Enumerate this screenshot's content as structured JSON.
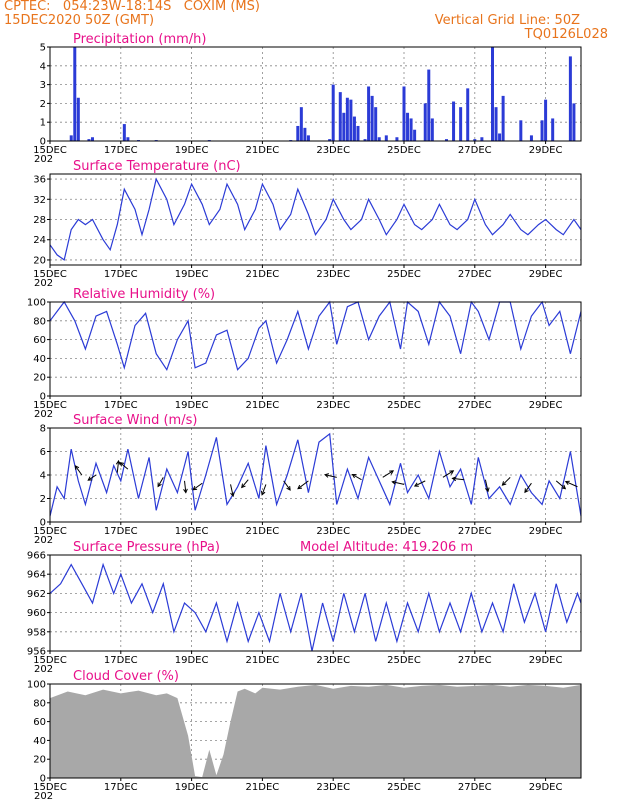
{
  "header": {
    "line1_left": "CPTEC:   054:23W-18:14S   COXIM (MS)",
    "line2_left": "15DEC2020 50Z (GMT)",
    "line1_right": "Vertical Grid Line: 50Z",
    "line2_right": "TQ0126L028"
  },
  "colors": {
    "header": "#e8741c",
    "title": "#e8108a",
    "line": "#2b3bd6",
    "cloud": "#a8a8a8",
    "grid": "#888888"
  },
  "x_axis": {
    "start_day": 15,
    "end_day": 30,
    "tick_labels": [
      "15DEC",
      "17DEC",
      "19DEC",
      "21DEC",
      "23DEC",
      "25DEC",
      "27DEC",
      "29DEC"
    ],
    "tick_days": [
      15,
      17,
      19,
      21,
      23,
      25,
      27,
      29
    ],
    "year_fragment": "202"
  },
  "chart_data": [
    {
      "id": "precip",
      "type": "bar",
      "title": "Precipitation (mm/h)",
      "ylim": [
        0,
        5
      ],
      "yticks": [
        "0",
        "1",
        "2",
        "3",
        "4",
        "5"
      ],
      "ytick_values": [
        0,
        1,
        2,
        3,
        4,
        5
      ],
      "x": [
        15.6,
        15.7,
        15.8,
        16.1,
        16.2,
        17.1,
        17.2,
        17.5,
        18.0,
        19.5,
        21.8,
        22.0,
        22.1,
        22.2,
        22.3,
        22.9,
        23.0,
        23.2,
        23.3,
        23.4,
        23.5,
        23.6,
        23.7,
        23.9,
        24.0,
        24.1,
        24.2,
        24.3,
        24.5,
        24.8,
        25.0,
        25.1,
        25.2,
        25.3,
        25.6,
        25.7,
        25.8,
        26.2,
        26.4,
        26.6,
        26.8,
        27.0,
        27.2,
        27.5,
        27.6,
        27.7,
        27.8,
        28.3,
        28.6,
        28.9,
        29.0,
        29.2,
        29.7,
        29.8
      ],
      "values": [
        0.3,
        5.0,
        2.3,
        0.1,
        0.2,
        0.9,
        0.2,
        0.05,
        0.05,
        0.05,
        0.05,
        0.8,
        1.8,
        0.7,
        0.3,
        0.1,
        3.0,
        2.6,
        1.5,
        2.3,
        2.2,
        1.3,
        0.8,
        0.1,
        2.9,
        2.4,
        1.8,
        0.2,
        0.3,
        0.2,
        2.9,
        1.5,
        1.2,
        0.6,
        2.0,
        3.8,
        1.2,
        0.1,
        2.1,
        1.8,
        2.8,
        0.1,
        0.2,
        5.0,
        1.8,
        0.4,
        2.4,
        1.1,
        0.3,
        1.1,
        2.2,
        1.2,
        4.5,
        2.0
      ]
    },
    {
      "id": "temp",
      "type": "line",
      "title": "Surface Temperature (nC)",
      "ylim": [
        19,
        37
      ],
      "yticks": [
        "20",
        "24",
        "28",
        "32",
        "36"
      ],
      "ytick_values": [
        20,
        24,
        28,
        32,
        36
      ],
      "x": [
        15.0,
        15.2,
        15.4,
        15.6,
        15.8,
        16.0,
        16.2,
        16.5,
        16.7,
        16.9,
        17.1,
        17.4,
        17.6,
        17.8,
        18.0,
        18.3,
        18.5,
        18.8,
        19.0,
        19.3,
        19.5,
        19.8,
        20.0,
        20.3,
        20.5,
        20.8,
        21.0,
        21.3,
        21.5,
        21.8,
        22.0,
        22.3,
        22.5,
        22.8,
        23.0,
        23.3,
        23.5,
        23.8,
        24.0,
        24.3,
        24.5,
        24.8,
        25.0,
        25.3,
        25.5,
        25.8,
        26.0,
        26.3,
        26.5,
        26.8,
        27.0,
        27.3,
        27.5,
        27.8,
        28.0,
        28.3,
        28.5,
        28.8,
        29.0,
        29.3,
        29.5,
        29.8,
        30.0
      ],
      "values": [
        23,
        21,
        20,
        26,
        28,
        27,
        28,
        24,
        22,
        27,
        34,
        30,
        25,
        30,
        36,
        32,
        27,
        31,
        35,
        31,
        27,
        30,
        35,
        31,
        26,
        30,
        35,
        31,
        26,
        29,
        34,
        29,
        25,
        28,
        32,
        28,
        26,
        28,
        32,
        28,
        25,
        28,
        31,
        27,
        26,
        28,
        31,
        27,
        26,
        28,
        32,
        27,
        25,
        27,
        29,
        26,
        25,
        27,
        28,
        26,
        25,
        28,
        26
      ]
    },
    {
      "id": "rh",
      "type": "line",
      "title": "Relative Humidity (%)",
      "ylim": [
        0,
        100
      ],
      "yticks": [
        "0",
        "20",
        "40",
        "60",
        "80",
        "100"
      ],
      "ytick_values": [
        0,
        20,
        40,
        60,
        80,
        100
      ],
      "x": [
        15.0,
        15.2,
        15.4,
        15.7,
        16.0,
        16.3,
        16.6,
        16.9,
        17.1,
        17.4,
        17.7,
        18.0,
        18.3,
        18.6,
        18.9,
        19.1,
        19.4,
        19.7,
        20.0,
        20.3,
        20.6,
        20.9,
        21.1,
        21.4,
        21.7,
        22.0,
        22.3,
        22.6,
        22.9,
        23.1,
        23.4,
        23.7,
        24.0,
        24.3,
        24.6,
        24.9,
        25.1,
        25.4,
        25.7,
        26.0,
        26.3,
        26.6,
        26.9,
        27.1,
        27.4,
        27.7,
        28.0,
        28.3,
        28.6,
        28.9,
        29.1,
        29.4,
        29.7,
        30.0
      ],
      "values": [
        80,
        90,
        100,
        80,
        50,
        85,
        90,
        55,
        30,
        75,
        88,
        45,
        28,
        60,
        80,
        30,
        35,
        65,
        70,
        28,
        40,
        72,
        80,
        35,
        60,
        90,
        50,
        85,
        100,
        55,
        95,
        100,
        60,
        85,
        100,
        50,
        100,
        90,
        55,
        100,
        85,
        45,
        100,
        90,
        60,
        100,
        100,
        50,
        85,
        100,
        75,
        90,
        45,
        90
      ]
    },
    {
      "id": "wind",
      "type": "line",
      "title": "Surface Wind (m/s)",
      "ylim": [
        0,
        8
      ],
      "yticks": [
        "0",
        "2",
        "4",
        "6",
        "8"
      ],
      "ytick_values": [
        0,
        2,
        4,
        6,
        8
      ],
      "x": [
        15.0,
        15.2,
        15.4,
        15.6,
        15.8,
        16.0,
        16.3,
        16.6,
        16.8,
        17.0,
        17.2,
        17.5,
        17.8,
        18.0,
        18.3,
        18.6,
        18.9,
        19.1,
        19.4,
        19.7,
        20.0,
        20.3,
        20.6,
        20.9,
        21.1,
        21.4,
        21.7,
        22.0,
        22.3,
        22.6,
        22.9,
        23.1,
        23.4,
        23.7,
        24.0,
        24.3,
        24.6,
        24.9,
        25.1,
        25.4,
        25.7,
        26.0,
        26.3,
        26.6,
        26.9,
        27.1,
        27.4,
        27.7,
        28.0,
        28.3,
        28.6,
        28.9,
        29.1,
        29.4,
        29.7,
        30.0
      ],
      "values": [
        0.5,
        3.0,
        2.0,
        6.2,
        3.5,
        1.5,
        5.0,
        2.5,
        4.8,
        3.5,
        6.2,
        2.0,
        5.5,
        1.0,
        4.5,
        2.5,
        6.0,
        1.0,
        4.0,
        7.2,
        1.5,
        3.0,
        5.0,
        2.0,
        6.5,
        1.5,
        4.0,
        7.0,
        2.5,
        6.8,
        7.5,
        1.5,
        4.5,
        2.0,
        5.5,
        3.5,
        1.5,
        5.0,
        2.5,
        4.0,
        2.0,
        6.0,
        3.0,
        4.5,
        1.5,
        5.5,
        2.0,
        3.0,
        1.5,
        4.0,
        2.5,
        1.5,
        3.5,
        2.0,
        6.0,
        0.5
      ],
      "arrows": [
        {
          "x": 15.9,
          "y": 4.0,
          "u": -0.5,
          "v": 0.7
        },
        {
          "x": 16.3,
          "y": 4.0,
          "u": -0.6,
          "v": -0.4
        },
        {
          "x": 16.9,
          "y": 4.2,
          "u": 0.1,
          "v": 0.9
        },
        {
          "x": 17.2,
          "y": 4.5,
          "u": -0.6,
          "v": 0.5
        },
        {
          "x": 18.2,
          "y": 3.8,
          "u": -0.4,
          "v": -0.7
        },
        {
          "x": 18.8,
          "y": 3.5,
          "u": 0.1,
          "v": -0.9
        },
        {
          "x": 19.3,
          "y": 3.3,
          "u": -0.7,
          "v": -0.5
        },
        {
          "x": 20.1,
          "y": 3.2,
          "u": 0.2,
          "v": -0.9
        },
        {
          "x": 20.6,
          "y": 3.6,
          "u": -0.5,
          "v": -0.6
        },
        {
          "x": 21.1,
          "y": 3.2,
          "u": -0.3,
          "v": -0.8
        },
        {
          "x": 21.6,
          "y": 3.5,
          "u": 0.5,
          "v": -0.7
        },
        {
          "x": 22.3,
          "y": 3.5,
          "u": -0.8,
          "v": -0.6
        },
        {
          "x": 23.1,
          "y": 3.8,
          "u": -0.9,
          "v": 0.2
        },
        {
          "x": 23.8,
          "y": 3.6,
          "u": -0.7,
          "v": 0.4
        },
        {
          "x": 24.4,
          "y": 3.8,
          "u": 0.8,
          "v": 0.5
        },
        {
          "x": 25.0,
          "y": 3.2,
          "u": -0.9,
          "v": 0.2
        },
        {
          "x": 25.6,
          "y": 3.5,
          "u": -0.8,
          "v": -0.4
        },
        {
          "x": 26.1,
          "y": 3.8,
          "u": 0.8,
          "v": 0.5
        },
        {
          "x": 26.7,
          "y": 3.6,
          "u": -0.9,
          "v": 0.1
        },
        {
          "x": 27.3,
          "y": 3.6,
          "u": 0.2,
          "v": -0.9
        },
        {
          "x": 28.0,
          "y": 3.8,
          "u": -0.6,
          "v": -0.6
        },
        {
          "x": 28.6,
          "y": 3.3,
          "u": -0.5,
          "v": -0.7
        },
        {
          "x": 29.3,
          "y": 3.5,
          "u": 0.7,
          "v": -0.6
        },
        {
          "x": 29.9,
          "y": 3.0,
          "u": -0.9,
          "v": 0.4
        }
      ]
    },
    {
      "id": "pres",
      "type": "line",
      "title": "Surface Pressure (hPa)",
      "ylim": [
        956,
        966
      ],
      "yticks": [
        "956",
        "958",
        "960",
        "962",
        "964",
        "966"
      ],
      "ytick_values": [
        956,
        958,
        960,
        962,
        964,
        966
      ],
      "x": [
        15.0,
        15.3,
        15.6,
        15.9,
        16.2,
        16.5,
        16.8,
        17.0,
        17.3,
        17.6,
        17.9,
        18.2,
        18.5,
        18.8,
        19.1,
        19.4,
        19.7,
        20.0,
        20.3,
        20.6,
        20.9,
        21.2,
        21.5,
        21.8,
        22.1,
        22.4,
        22.7,
        23.0,
        23.3,
        23.6,
        23.9,
        24.2,
        24.5,
        24.8,
        25.1,
        25.4,
        25.7,
        26.0,
        26.3,
        26.6,
        26.9,
        27.2,
        27.5,
        27.8,
        28.1,
        28.4,
        28.7,
        29.0,
        29.3,
        29.6,
        29.9,
        30.0
      ],
      "values": [
        962,
        963,
        965,
        963,
        961,
        965,
        962,
        964,
        961,
        963,
        960,
        963,
        958,
        961,
        960,
        958,
        961,
        957,
        961,
        957,
        960,
        957,
        962,
        958,
        962,
        956,
        961,
        957,
        962,
        958,
        962,
        957,
        961,
        957,
        961,
        958,
        962,
        958,
        961,
        958,
        962,
        958,
        961,
        958,
        963,
        959,
        962,
        958,
        963,
        959,
        962,
        961
      ],
      "annotation": "Model Altitude: 419.206 m"
    },
    {
      "id": "cloud",
      "type": "area",
      "title": "Cloud Cover (%)",
      "ylim": [
        0,
        100
      ],
      "yticks": [
        "0",
        "20",
        "40",
        "60",
        "80",
        "100"
      ],
      "ytick_values": [
        0,
        20,
        40,
        60,
        80,
        100
      ],
      "x": [
        15.0,
        15.5,
        16.0,
        16.5,
        17.0,
        17.5,
        18.0,
        18.3,
        18.6,
        18.9,
        19.1,
        19.3,
        19.5,
        19.7,
        19.9,
        20.1,
        20.3,
        20.5,
        20.8,
        21.0,
        21.5,
        22.0,
        22.5,
        23.0,
        23.5,
        24.0,
        24.5,
        25.0,
        25.5,
        26.0,
        26.5,
        27.0,
        27.5,
        28.0,
        28.5,
        29.0,
        29.5,
        30.0
      ],
      "values": [
        85,
        92,
        88,
        94,
        90,
        93,
        88,
        90,
        85,
        45,
        2,
        1,
        30,
        3,
        25,
        60,
        92,
        95,
        90,
        96,
        94,
        97,
        99,
        95,
        98,
        97,
        99,
        96,
        98,
        99,
        97,
        98,
        99,
        97,
        99,
        98,
        96,
        99
      ]
    }
  ]
}
